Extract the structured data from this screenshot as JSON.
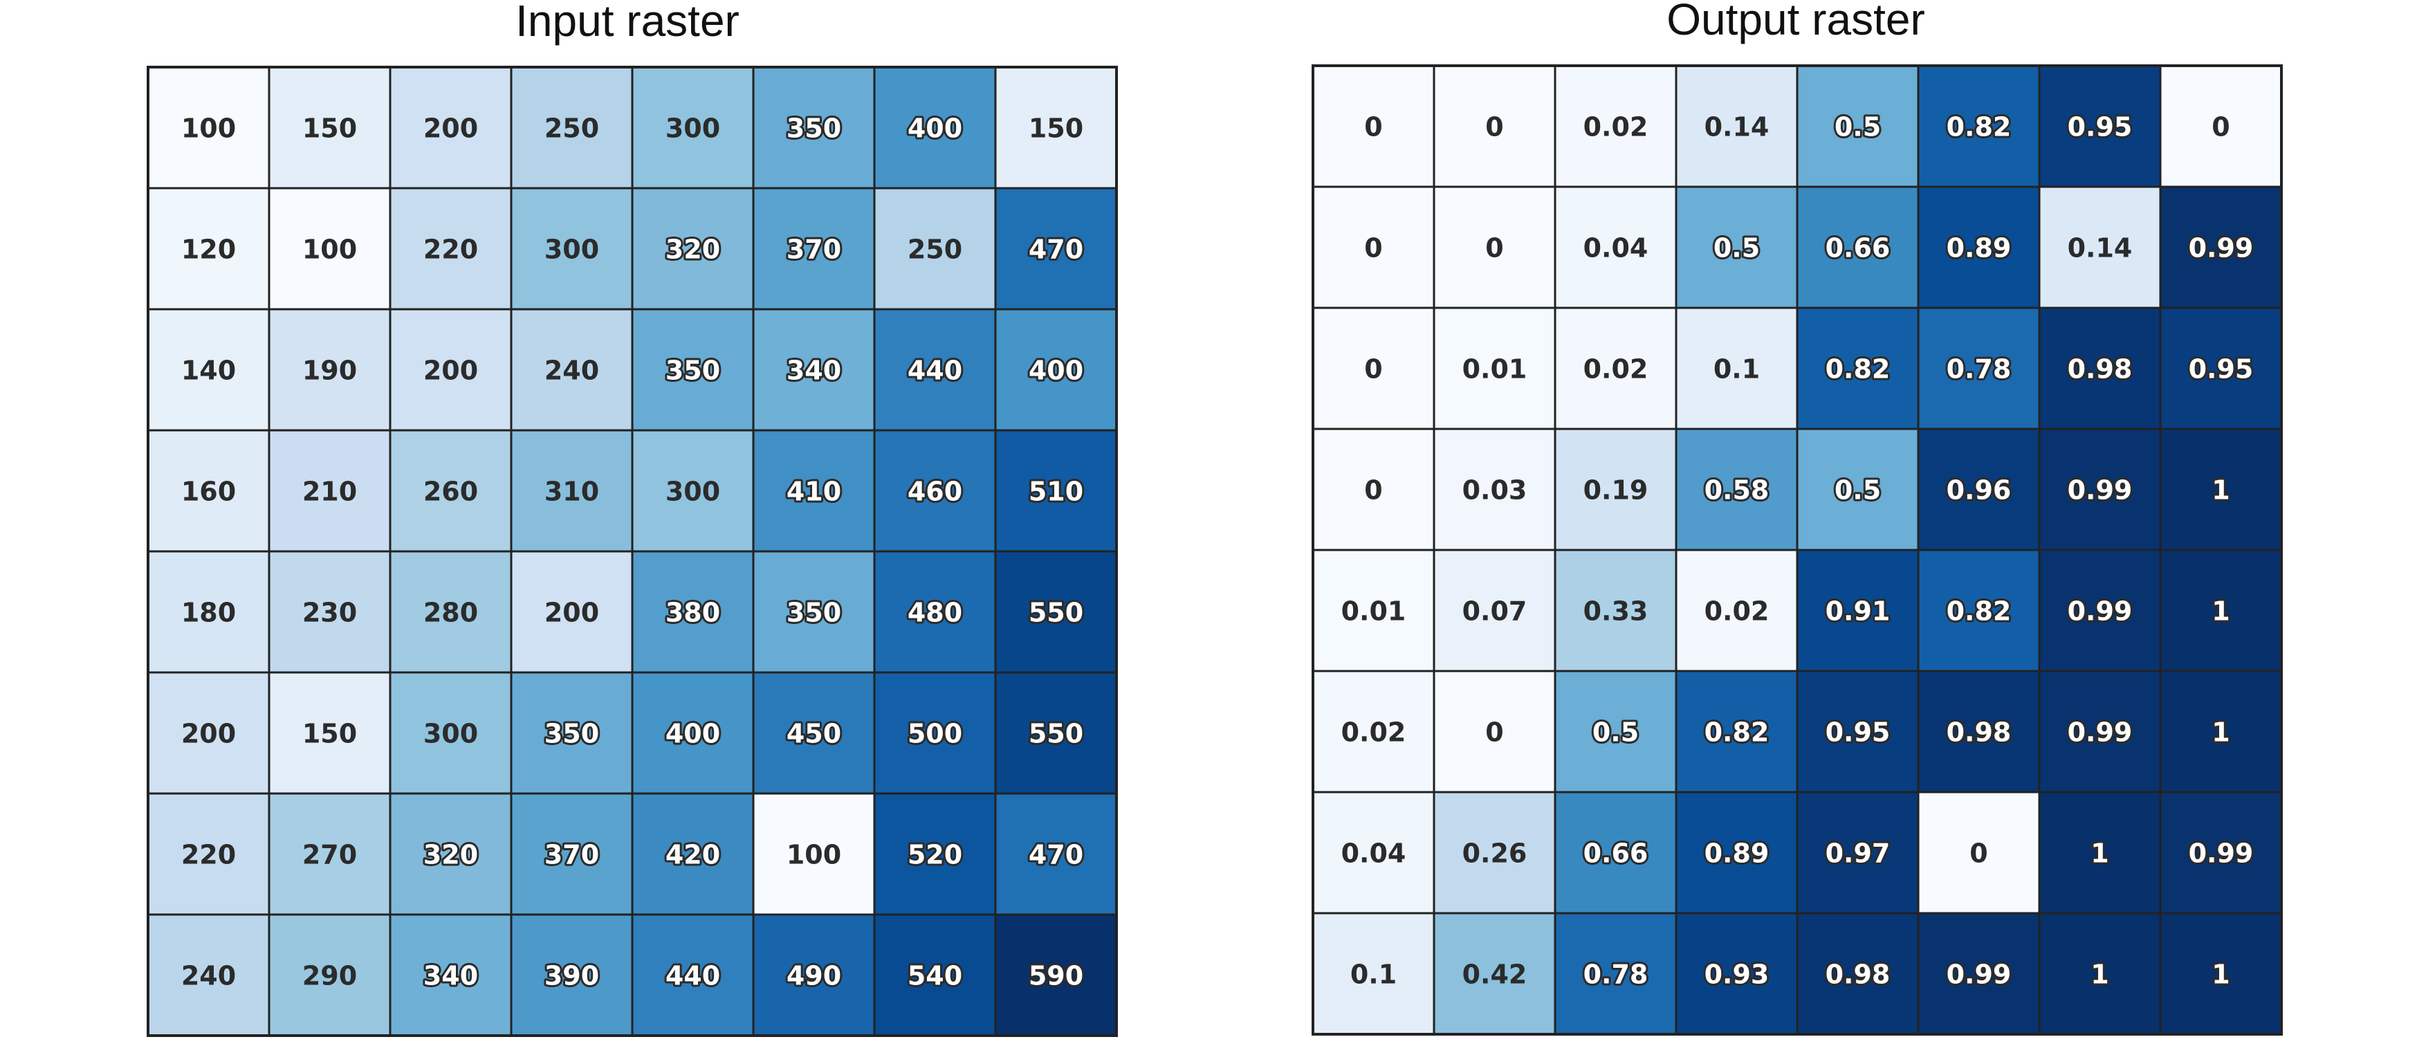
{
  "chart_data": [
    {
      "type": "heatmap",
      "title": "Input raster",
      "colormap": "Blues",
      "vmin": 100,
      "vmax": 590,
      "values": [
        [
          100,
          150,
          200,
          250,
          300,
          350,
          400,
          150
        ],
        [
          120,
          100,
          220,
          300,
          320,
          370,
          250,
          470
        ],
        [
          140,
          190,
          200,
          240,
          350,
          340,
          440,
          400
        ],
        [
          160,
          210,
          260,
          310,
          300,
          410,
          460,
          510
        ],
        [
          180,
          230,
          280,
          200,
          380,
          350,
          480,
          550
        ],
        [
          200,
          150,
          300,
          350,
          400,
          450,
          500,
          550
        ],
        [
          220,
          270,
          320,
          370,
          420,
          100,
          520,
          470
        ],
        [
          240,
          290,
          340,
          390,
          440,
          490,
          540,
          590
        ]
      ],
      "gridlines": true,
      "cell_labels": true
    },
    {
      "type": "heatmap",
      "title": "Output raster",
      "colormap": "Blues",
      "vmin": 0,
      "vmax": 1,
      "values": [
        [
          0,
          0,
          0.02,
          0.14,
          0.5,
          0.82,
          0.95,
          0
        ],
        [
          0,
          0,
          0.04,
          0.5,
          0.66,
          0.89,
          0.14,
          0.99
        ],
        [
          0,
          0.01,
          0.02,
          0.1,
          0.82,
          0.78,
          0.98,
          0.95
        ],
        [
          0,
          0.03,
          0.19,
          0.58,
          0.5,
          0.96,
          0.99,
          1
        ],
        [
          0.01,
          0.07,
          0.33,
          0.02,
          0.91,
          0.82,
          0.99,
          1
        ],
        [
          0.02,
          0,
          0.5,
          0.82,
          0.95,
          0.98,
          0.99,
          1
        ],
        [
          0.04,
          0.26,
          0.66,
          0.89,
          0.97,
          0,
          1,
          0.99
        ],
        [
          0.1,
          0.42,
          0.78,
          0.93,
          0.98,
          0.99,
          1,
          1
        ]
      ],
      "gridlines": true,
      "cell_labels": true
    }
  ],
  "colors": {
    "grid_line": "#222222",
    "dark_text": "#2b2b2b",
    "light_text": "#ffffff",
    "title_text": "#111111",
    "blues_scale": [
      "#f7fbff",
      "#deebf7",
      "#c6dbef",
      "#9ecae1",
      "#6baed6",
      "#4292c6",
      "#2171b5",
      "#08519c",
      "#08306b"
    ]
  }
}
